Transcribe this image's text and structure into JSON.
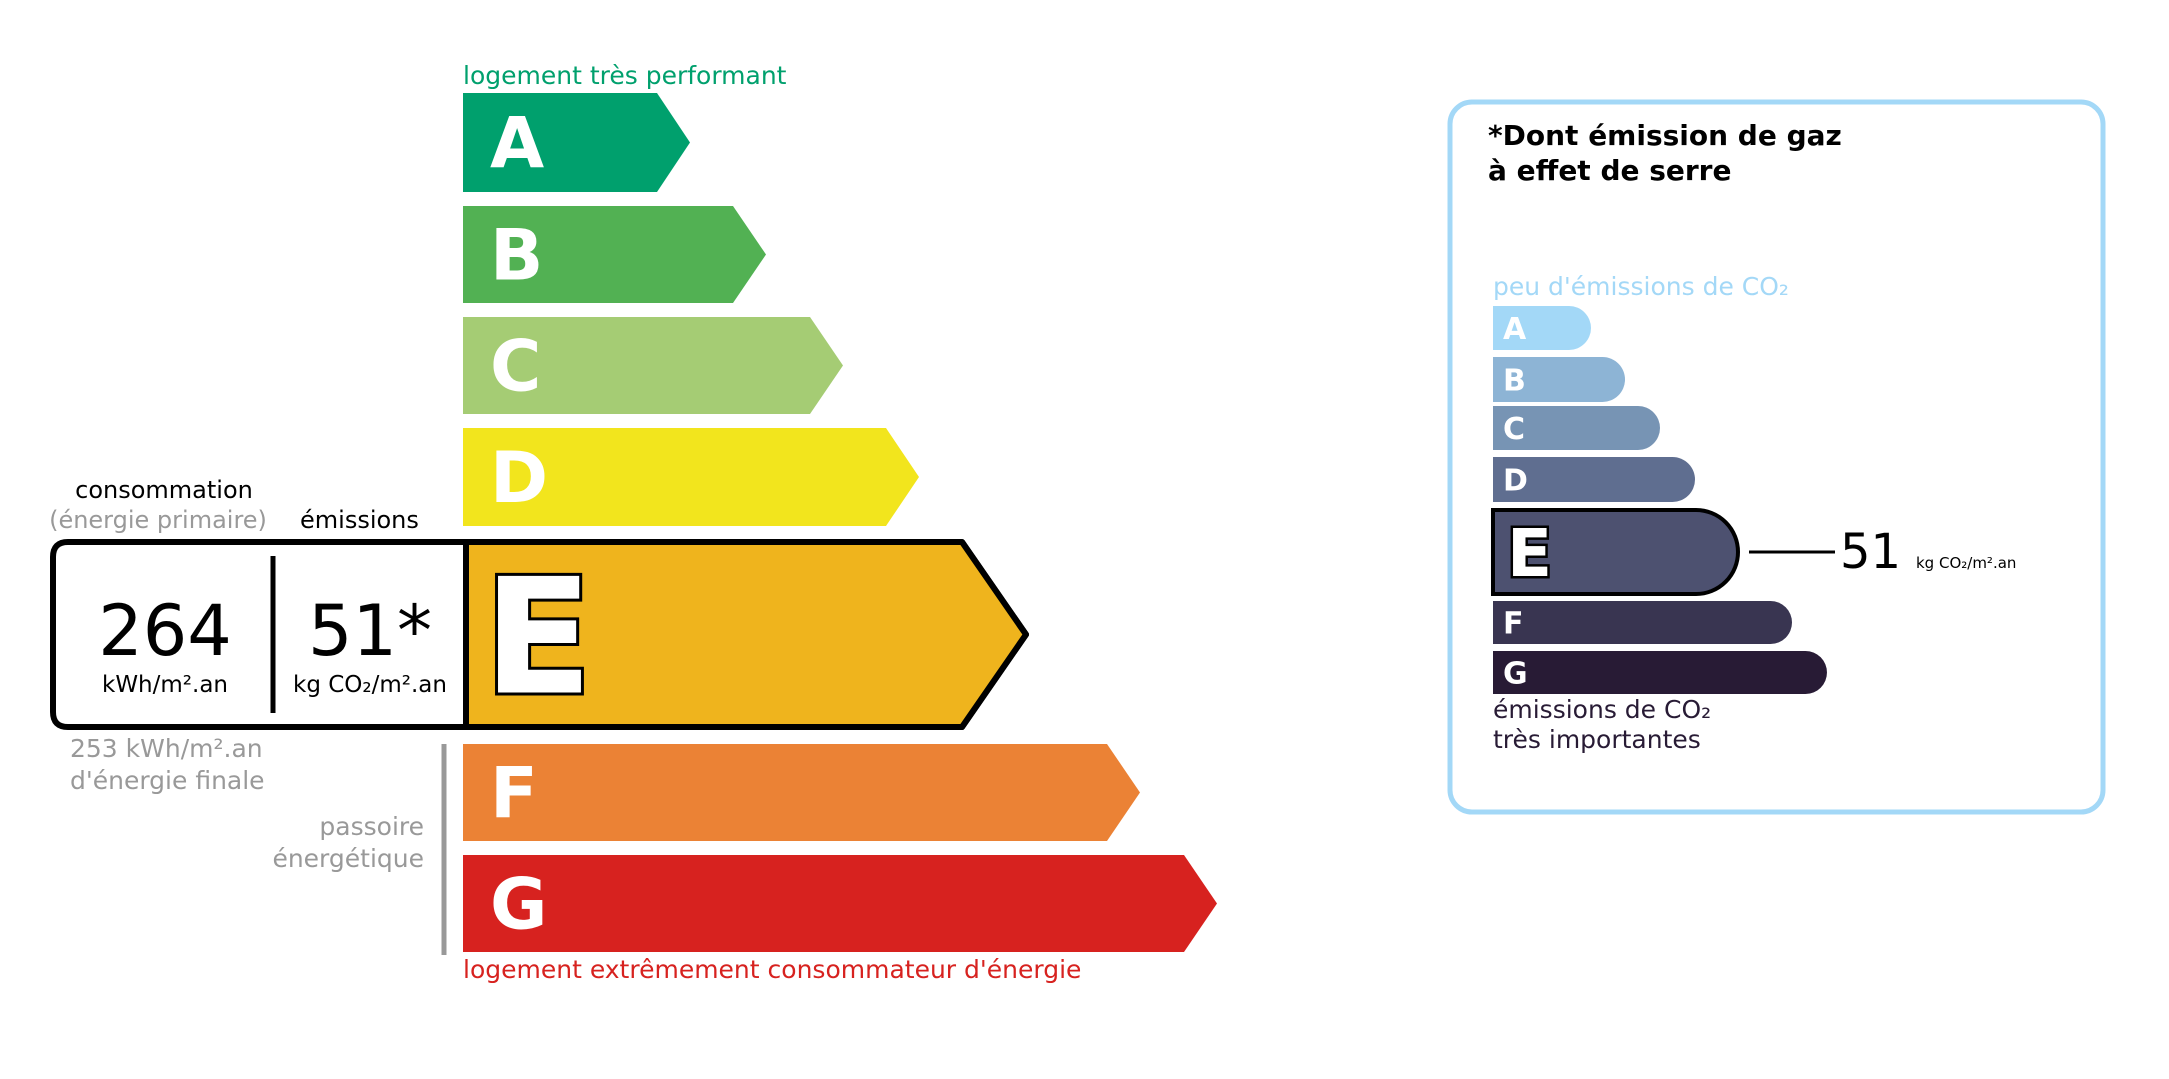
{
  "energy": {
    "top_label": "logement très performant",
    "bottom_label": "logement extrêmement consommateur d'énergie",
    "classes": [
      {
        "letter": "A",
        "color": "#00a06d"
      },
      {
        "letter": "B",
        "color": "#52b153"
      },
      {
        "letter": "C",
        "color": "#a5cc74"
      },
      {
        "letter": "D",
        "color": "#f2e51d"
      },
      {
        "letter": "E",
        "color": "#efb41d"
      },
      {
        "letter": "F",
        "color": "#eb8235"
      },
      {
        "letter": "G",
        "color": "#d7221f"
      }
    ],
    "current_class": "E",
    "consumption_label": "consommation",
    "consumption_sublabel": "(énergie primaire)",
    "emissions_label": "émissions",
    "consumption_value": "264",
    "consumption_unit": "kWh/m².an",
    "emissions_value": "51*",
    "emissions_unit": "kg CO₂/m².an",
    "final_energy_line1": "253 kWh/m².an",
    "final_energy_line2": "d'énergie finale",
    "passoire_line1": "passoire",
    "passoire_line2": "énergétique"
  },
  "ges": {
    "title_line1": "*Dont émission de gaz",
    "title_line2": "à effet de serre",
    "top_label": "peu d'émissions de CO₂",
    "bottom_line1": "émissions de CO₂",
    "bottom_line2": "très importantes",
    "classes": [
      {
        "letter": "A",
        "color": "#a3d8f7"
      },
      {
        "letter": "B",
        "color": "#8db4d5"
      },
      {
        "letter": "C",
        "color": "#7794b4"
      },
      {
        "letter": "D",
        "color": "#5f6e90"
      },
      {
        "letter": "E",
        "color": "#4d5170"
      },
      {
        "letter": "F",
        "color": "#393551"
      },
      {
        "letter": "G",
        "color": "#281b35"
      }
    ],
    "current_class": "E",
    "value": "51",
    "unit": "kg CO₂/m².an",
    "border_color": "#a3d8f7"
  }
}
